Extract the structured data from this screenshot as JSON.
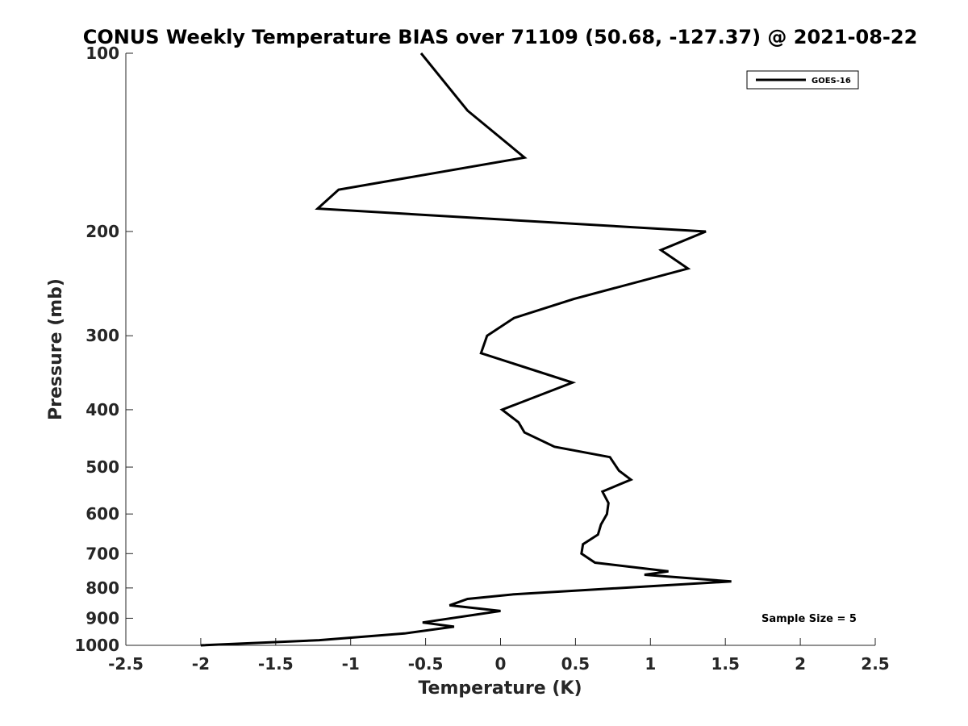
{
  "chart_data": {
    "type": "line",
    "title": "CONUS Weekly Temperature BIAS over 71109 (50.68, -127.37) @ 2021-08-22",
    "xlabel": "Temperature (K)",
    "ylabel": "Pressure (mb)",
    "xlim": [
      -2.5,
      2.5
    ],
    "ylim": [
      100,
      1000
    ],
    "y_scale": "log",
    "y_reversed": true,
    "x_ticks": [
      "-2.5",
      "-2",
      "-1.5",
      "-1",
      "-0.5",
      "0",
      "0.5",
      "1",
      "1.5",
      "2",
      "2.5"
    ],
    "y_ticks": [
      "100",
      "200",
      "300",
      "400",
      "500",
      "600",
      "700",
      "800",
      "900",
      "1000"
    ],
    "grid": false,
    "legend_position": "top-right",
    "series": [
      {
        "name": "GOES-16",
        "color": "#000000",
        "points": [
          {
            "x": -0.53,
            "y": 100
          },
          {
            "x": -0.22,
            "y": 125
          },
          {
            "x": 0.16,
            "y": 150
          },
          {
            "x": -1.08,
            "y": 170
          },
          {
            "x": -1.22,
            "y": 183
          },
          {
            "x": 1.37,
            "y": 200
          },
          {
            "x": 1.07,
            "y": 215
          },
          {
            "x": 1.25,
            "y": 231
          },
          {
            "x": 0.49,
            "y": 260
          },
          {
            "x": 0.09,
            "y": 280
          },
          {
            "x": -0.09,
            "y": 300
          },
          {
            "x": -0.13,
            "y": 321
          },
          {
            "x": 0.48,
            "y": 360
          },
          {
            "x": 0.01,
            "y": 400
          },
          {
            "x": 0.12,
            "y": 420
          },
          {
            "x": 0.16,
            "y": 437
          },
          {
            "x": 0.36,
            "y": 462
          },
          {
            "x": 0.73,
            "y": 481
          },
          {
            "x": 0.79,
            "y": 507
          },
          {
            "x": 0.87,
            "y": 525
          },
          {
            "x": 0.68,
            "y": 550
          },
          {
            "x": 0.72,
            "y": 575
          },
          {
            "x": 0.71,
            "y": 600
          },
          {
            "x": 0.67,
            "y": 625
          },
          {
            "x": 0.65,
            "y": 650
          },
          {
            "x": 0.55,
            "y": 675
          },
          {
            "x": 0.54,
            "y": 700
          },
          {
            "x": 0.63,
            "y": 725
          },
          {
            "x": 1.12,
            "y": 750
          },
          {
            "x": 0.96,
            "y": 760
          },
          {
            "x": 1.54,
            "y": 780
          },
          {
            "x": 0.09,
            "y": 820
          },
          {
            "x": -0.22,
            "y": 835
          },
          {
            "x": -0.34,
            "y": 856
          },
          {
            "x": 0.0,
            "y": 875
          },
          {
            "x": -0.52,
            "y": 915
          },
          {
            "x": -0.31,
            "y": 930
          },
          {
            "x": -0.64,
            "y": 955
          },
          {
            "x": -1.21,
            "y": 980
          },
          {
            "x": -2.0,
            "y": 1000
          }
        ]
      }
    ],
    "annotations": [
      "Sample Size = 5"
    ]
  }
}
